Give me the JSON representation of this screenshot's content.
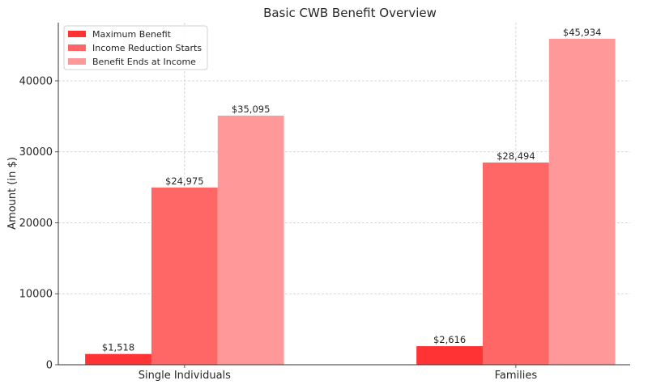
{
  "chart_data": {
    "type": "bar",
    "title": "Basic CWB Benefit Overview",
    "xlabel": "",
    "ylabel": "Amount (in $)",
    "categories": [
      "Single Individuals",
      "Families"
    ],
    "series": [
      {
        "name": "Maximum Benefit",
        "values": [
          1518,
          2616
        ],
        "labels": [
          "$1,518",
          "$2,616"
        ],
        "color": "#ff3333"
      },
      {
        "name": "Income Reduction Starts",
        "values": [
          24975,
          28494
        ],
        "labels": [
          "$24,975",
          "$28,494"
        ],
        "color": "#ff6666"
      },
      {
        "name": "Benefit Ends at Income",
        "values": [
          35095,
          45934
        ],
        "labels": [
          "$35,095",
          "$45,934"
        ],
        "color": "#ff9999"
      }
    ],
    "ylim": [
      0,
      48200
    ],
    "yticks": [
      0,
      10000,
      20000,
      30000,
      40000
    ],
    "grid": true,
    "legend_position": "top-left"
  }
}
